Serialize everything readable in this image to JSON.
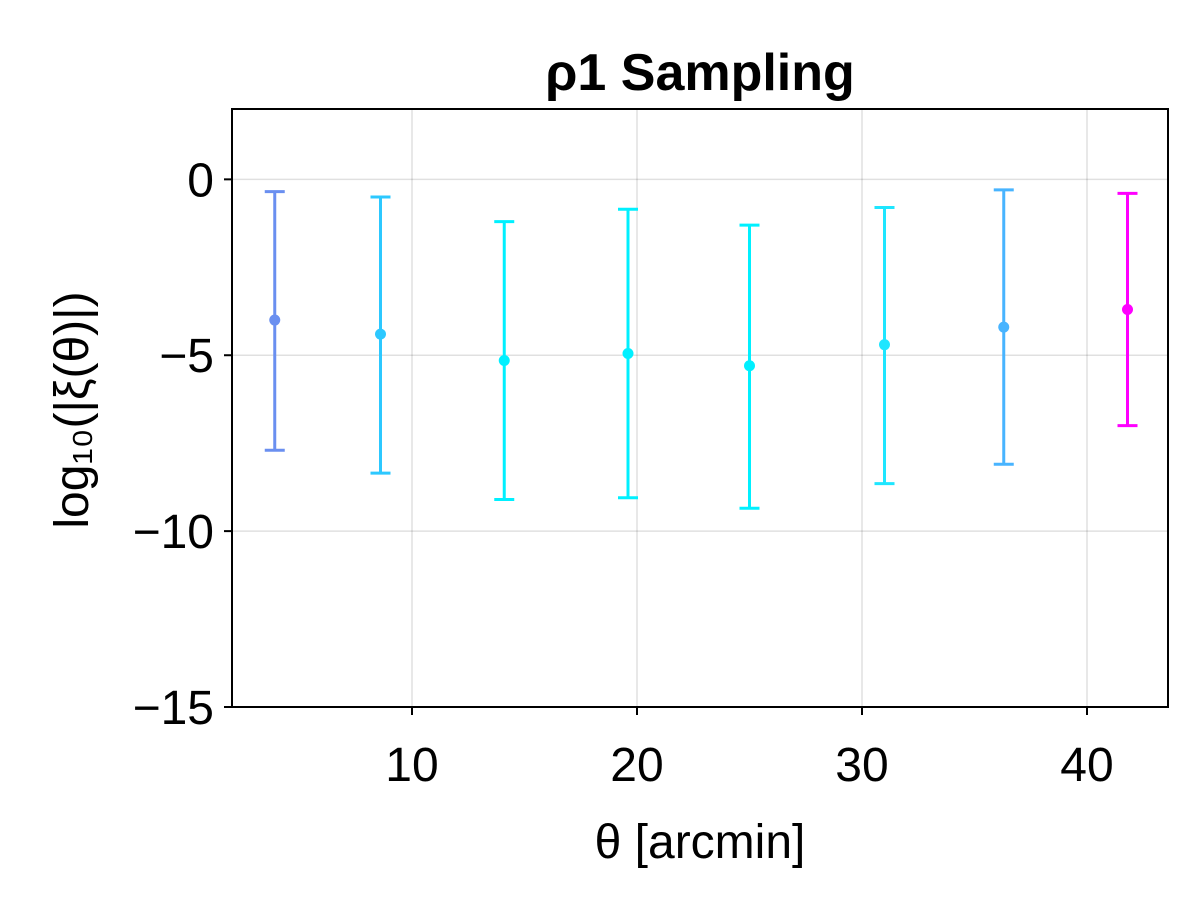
{
  "chart_data": {
    "type": "errorbar",
    "title": "ρ1 Sampling",
    "xlabel": "θ [arcmin]",
    "ylabel": "log₁₀(|ξ(θ)|)",
    "xlim": [
      2,
      43.6
    ],
    "ylim": [
      -15,
      2
    ],
    "xticks": [
      10,
      20,
      30,
      40
    ],
    "yticks": [
      -15,
      -10,
      -5,
      0
    ],
    "xtick_labels": [
      "10",
      "20",
      "30",
      "40"
    ],
    "ytick_labels": [
      "−15",
      "−10",
      "−5",
      "0"
    ],
    "grid": true,
    "points": [
      {
        "x": 3.9,
        "y": -4.0,
        "lo": -7.7,
        "hi": -0.35,
        "color": "#6a8ff0"
      },
      {
        "x": 8.6,
        "y": -4.4,
        "lo": -8.35,
        "hi": -0.5,
        "color": "#2cc8ff"
      },
      {
        "x": 14.1,
        "y": -5.15,
        "lo": -9.1,
        "hi": -1.2,
        "color": "#00f0ff"
      },
      {
        "x": 19.6,
        "y": -4.95,
        "lo": -9.05,
        "hi": -0.85,
        "color": "#00f0ff"
      },
      {
        "x": 25.0,
        "y": -5.3,
        "lo": -9.35,
        "hi": -1.3,
        "color": "#00f0ff"
      },
      {
        "x": 31.0,
        "y": -4.7,
        "lo": -8.65,
        "hi": -0.8,
        "color": "#1ee6ff"
      },
      {
        "x": 36.3,
        "y": -4.2,
        "lo": -8.1,
        "hi": -0.3,
        "color": "#48b4ff"
      },
      {
        "x": 41.8,
        "y": -3.7,
        "lo": -7.0,
        "hi": -0.4,
        "color": "#ff00ff"
      }
    ]
  }
}
